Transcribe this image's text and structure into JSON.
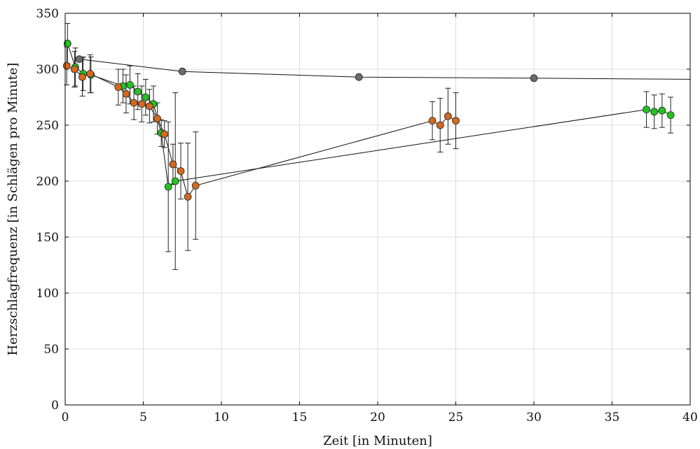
{
  "chart_data": {
    "type": "scatter",
    "xlabel": "Zeit [in Minuten]",
    "ylabel": "Herzschlagfrequenz [in Schlägen pro Minute]",
    "xlim": [
      0,
      40
    ],
    "ylim": [
      0,
      350
    ],
    "xticks": [
      0,
      5,
      10,
      15,
      20,
      25,
      30,
      35,
      40
    ],
    "yticks": [
      0,
      50,
      100,
      150,
      200,
      250,
      300,
      350
    ],
    "grid": true,
    "legend": "none",
    "series": [
      {
        "color": "#6b6b6b",
        "connected": true,
        "points": [
          {
            "x": 0.9,
            "y": 309
          },
          {
            "x": 7.5,
            "y": 298
          },
          {
            "x": 18.8,
            "y": 293
          },
          {
            "x": 30.0,
            "y": 292
          },
          {
            "x": 40.0,
            "y": 291,
            "marker": false
          }
        ]
      },
      {
        "color": "#22c322",
        "connected": true,
        "points": [
          {
            "x": 0.15,
            "y": 323,
            "err": 18
          },
          {
            "x": 0.65,
            "y": 302,
            "err": 17
          },
          {
            "x": 1.15,
            "y": 296,
            "err": 15
          },
          {
            "x": 1.65,
            "y": 295,
            "err": 16
          },
          {
            "x": 3.7,
            "y": 285,
            "err": 15
          },
          {
            "x": 4.15,
            "y": 286,
            "err": 17
          },
          {
            "x": 4.65,
            "y": 280,
            "err": 16
          },
          {
            "x": 5.15,
            "y": 275,
            "err": 16
          },
          {
            "x": 5.65,
            "y": 269,
            "err": 16
          },
          {
            "x": 6.15,
            "y": 243,
            "err": 12
          },
          {
            "x": 6.6,
            "y": 195,
            "err": 58
          },
          {
            "x": 7.05,
            "y": 200,
            "err": 79
          },
          {
            "x": 37.2,
            "y": 264,
            "err": 16
          },
          {
            "x": 37.7,
            "y": 262,
            "err": 15
          },
          {
            "x": 38.2,
            "y": 263,
            "err": 15
          },
          {
            "x": 38.75,
            "y": 259,
            "err": 16
          }
        ]
      },
      {
        "color": "#d2691e",
        "connected": true,
        "points": [
          {
            "x": 0.1,
            "y": 303,
            "err": 17
          },
          {
            "x": 0.6,
            "y": 300,
            "err": 16
          },
          {
            "x": 1.1,
            "y": 293,
            "err": 17
          },
          {
            "x": 1.6,
            "y": 296,
            "err": 17
          },
          {
            "x": 3.4,
            "y": 284,
            "err": 16
          },
          {
            "x": 3.9,
            "y": 278,
            "err": 17
          },
          {
            "x": 4.4,
            "y": 270,
            "err": 15
          },
          {
            "x": 4.9,
            "y": 269,
            "err": 16
          },
          {
            "x": 5.4,
            "y": 267,
            "err": 15
          },
          {
            "x": 5.9,
            "y": 256,
            "err": 14
          },
          {
            "x": 6.35,
            "y": 242,
            "err": 12
          },
          {
            "x": 6.9,
            "y": 215,
            "err": 18
          },
          {
            "x": 7.4,
            "y": 209,
            "err": 25
          },
          {
            "x": 7.85,
            "y": 186,
            "err": 48
          },
          {
            "x": 8.35,
            "y": 196,
            "err": 48
          },
          {
            "x": 23.5,
            "y": 254,
            "err": 17
          },
          {
            "x": 24.0,
            "y": 250,
            "err": 24
          },
          {
            "x": 24.5,
            "y": 258,
            "err": 25
          },
          {
            "x": 25.0,
            "y": 254,
            "err": 25
          }
        ]
      }
    ]
  }
}
